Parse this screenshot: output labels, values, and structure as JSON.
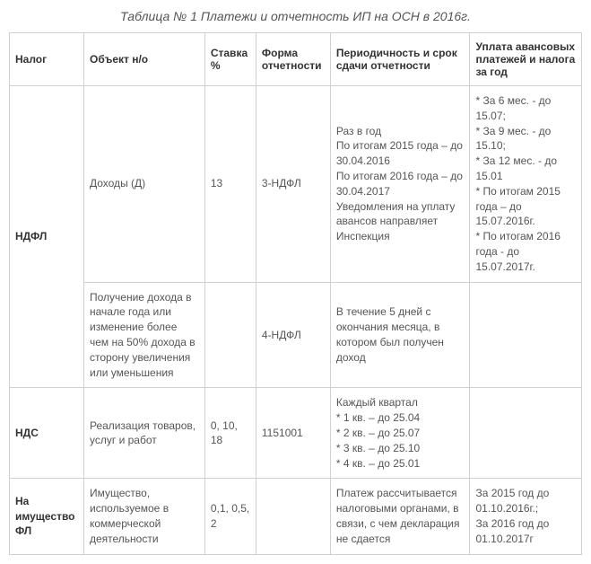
{
  "title": "Таблица № 1 Платежи и отчетность ИП на ОСН в 2016г.",
  "headers": {
    "tax": "Налог",
    "object": "Объект н/о",
    "rate": "Ставка %",
    "form": "Форма отчетности",
    "period": "Периодичность и срок сдачи отчетности",
    "payment": "Уплата авансовых платежей и налога за год"
  },
  "rows": [
    {
      "tax": "НДФЛ",
      "tax_rowspan": 2,
      "object": "Доходы (Д)",
      "rate": "13",
      "form": "3-НДФЛ",
      "period": "Раз в год\nПо итогам 2015 года – до 30.04.2016\nПо итогам 2016 года – до 30.04.2017\nУведомления на уплату авансов направляет Инспекция",
      "payment": "* За 6 мес. - до 15.07;\n* За 9 мес. - до 15.10;\n* За 12 мес. - до 15.01\n* По итогам 2015 года – до 15.07.2016г.\n* По итогам 2016 года - до 15.07.2017г."
    },
    {
      "object": "Получение дохода в начале года или изменение более чем на 50% дохода в сторону увеличения или уменьшения",
      "rate": "",
      "form": "4-НДФЛ",
      "period": "В течение 5 дней с окончания месяца, в котором был получен доход",
      "payment": ""
    },
    {
      "tax": "НДС",
      "object": "Реализация товаров, услуг и работ",
      "rate": "0, 10, 18",
      "form": "1151001",
      "period": "Каждый квартал\n* 1 кв. – до 25.04\n* 2 кв. – до 25.07\n* 3 кв. – до 25.10\n* 4 кв. – до 25.01",
      "payment": ""
    },
    {
      "tax": "На имущество ФЛ",
      "object": "Имущество, используемое в коммерческой деятельности",
      "rate": "0,1, 0,5, 2",
      "form": "",
      "period": "Платеж рассчитывается налоговыми органами, в связи, с чем декларация не сдается",
      "payment": "За 2015 год до 01.10.2016г.;\nЗа 2016 год до 01.10.2017г"
    }
  ],
  "style": {
    "border_color": "#d0d0d0",
    "text_color": "#555555",
    "header_color": "#333333",
    "background": "#ffffff",
    "font_size_body": 12,
    "font_size_title": 14
  }
}
